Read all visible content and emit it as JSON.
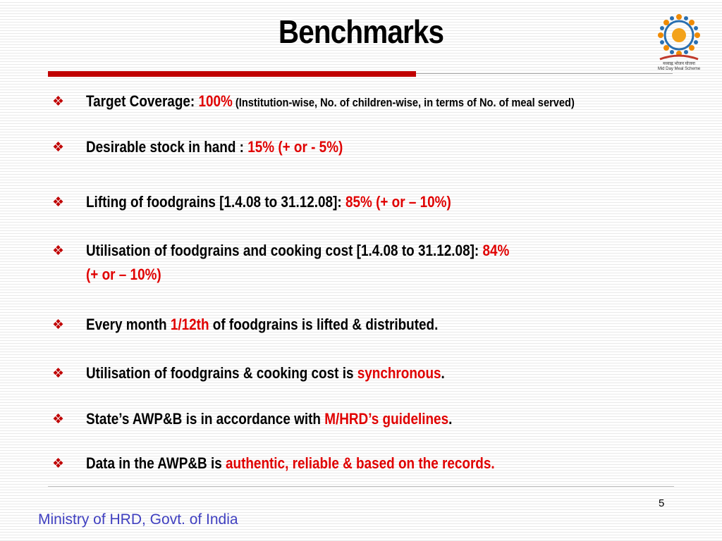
{
  "title": "Benchmarks",
  "logo": {
    "caption_hindi": "मध्याह्न भोजन योजना",
    "caption_english": "Mid Day Meal Scheme",
    "icon": "mid-day-meal-logo-icon"
  },
  "bullet_icon": "diamond-bullet-icon",
  "bullets": [
    {
      "label": "Target Coverage: ",
      "value": "100%",
      "note": " (Institution-wise, No. of children-wise, in terms of No. of meal served)"
    },
    {
      "label": "Desirable stock in hand : ",
      "value": "15% (+ or - 5%)"
    },
    {
      "label": "Lifting of foodgrains  [1.4.08 to 31.12.08]: ",
      "value": "85%  (+ or – 10%)"
    },
    {
      "label": "Utilisation of foodgrains and cooking cost [1.4.08 to 31.12.08]: ",
      "value": "84%",
      "value_line2": "(+ or – 10%)"
    },
    {
      "label": "Every month ",
      "value": "1/12th",
      "suffix": " of foodgrains is lifted & distributed."
    },
    {
      "label": "Utilisation of foodgrains & cooking cost is ",
      "value": "synchronous",
      "suffix": "."
    },
    {
      "label": "State’s AWP&B is in accordance with ",
      "value": "M/HRD’s guidelines",
      "suffix": "."
    },
    {
      "label": "Data in the AWP&B is ",
      "value": "authentic, reliable & based on the records."
    }
  ],
  "slide_number": "5",
  "footer": "Ministry of HRD, Govt. of India",
  "colors": {
    "accent_red": "#c00000",
    "value_red": "#e00000",
    "footer_blue": "#4040c0"
  }
}
